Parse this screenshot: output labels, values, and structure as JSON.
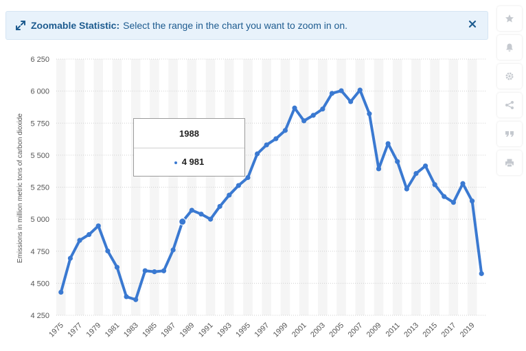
{
  "banner": {
    "title": "Zoomable Statistic:",
    "message": "Select the range in the chart you want to zoom in on.",
    "expand_icon": "expand-arrows-icon",
    "close_icon": "close-icon"
  },
  "sidebar": [
    {
      "name": "favorite-star-icon"
    },
    {
      "name": "notification-bell-icon"
    },
    {
      "name": "settings-gear-icon"
    },
    {
      "name": "share-icon"
    },
    {
      "name": "quote-icon"
    },
    {
      "name": "print-icon"
    }
  ],
  "tooltip": {
    "year": "1988",
    "value": "4 981"
  },
  "colors": {
    "line": "#3a79d1",
    "banner_bg": "#e8f2fb",
    "banner_text": "#1d5b8f",
    "band": "#f5f5f5"
  },
  "chart_data": {
    "type": "line",
    "title": "",
    "xlabel": "",
    "ylabel": "Emissions in million metric tons of carbon dioxide",
    "ylim": [
      4250,
      6250
    ],
    "yticks": [
      4250,
      4500,
      4750,
      5000,
      5250,
      5500,
      5750,
      6000,
      6250
    ],
    "ytick_labels": [
      "4 250",
      "4 500",
      "4 750",
      "5 000",
      "5 250",
      "5 500",
      "5 750",
      "6 000",
      "6 250"
    ],
    "xtick_labels": [
      "1975",
      "1977",
      "1979",
      "1981",
      "1983",
      "1985",
      "1987",
      "1989",
      "1991",
      "1993",
      "1995",
      "1997",
      "1999",
      "2001",
      "2003",
      "2005",
      "2007",
      "2009",
      "2011",
      "2013",
      "2015",
      "2017",
      "2019"
    ],
    "grid": "horizontal dotted",
    "series": [
      {
        "x": [
          1975,
          1976,
          1977,
          1978,
          1979,
          1980,
          1981,
          1982,
          1983,
          1984,
          1985,
          1986,
          1987,
          1988,
          1989,
          1990,
          1991,
          1992,
          1993,
          1994,
          1995,
          1996,
          1997,
          1998,
          1999,
          2000,
          2001,
          2002,
          2003,
          2004,
          2005,
          2006,
          2007,
          2008,
          2009,
          2010,
          2011,
          2012,
          2013,
          2014,
          2015,
          2016,
          2017,
          2018,
          2019,
          2020
        ],
        "values": [
          4430,
          4695,
          4835,
          4880,
          4948,
          4752,
          4625,
          4395,
          4372,
          4598,
          4590,
          4597,
          4760,
          4981,
          5070,
          5040,
          5000,
          5100,
          5188,
          5263,
          5325,
          5510,
          5580,
          5628,
          5693,
          5868,
          5768,
          5811,
          5860,
          5982,
          6003,
          5918,
          6008,
          5823,
          5393,
          5590,
          5450,
          5236,
          5357,
          5416,
          5270,
          5177,
          5131,
          5278,
          5142,
          4575
        ]
      }
    ]
  }
}
